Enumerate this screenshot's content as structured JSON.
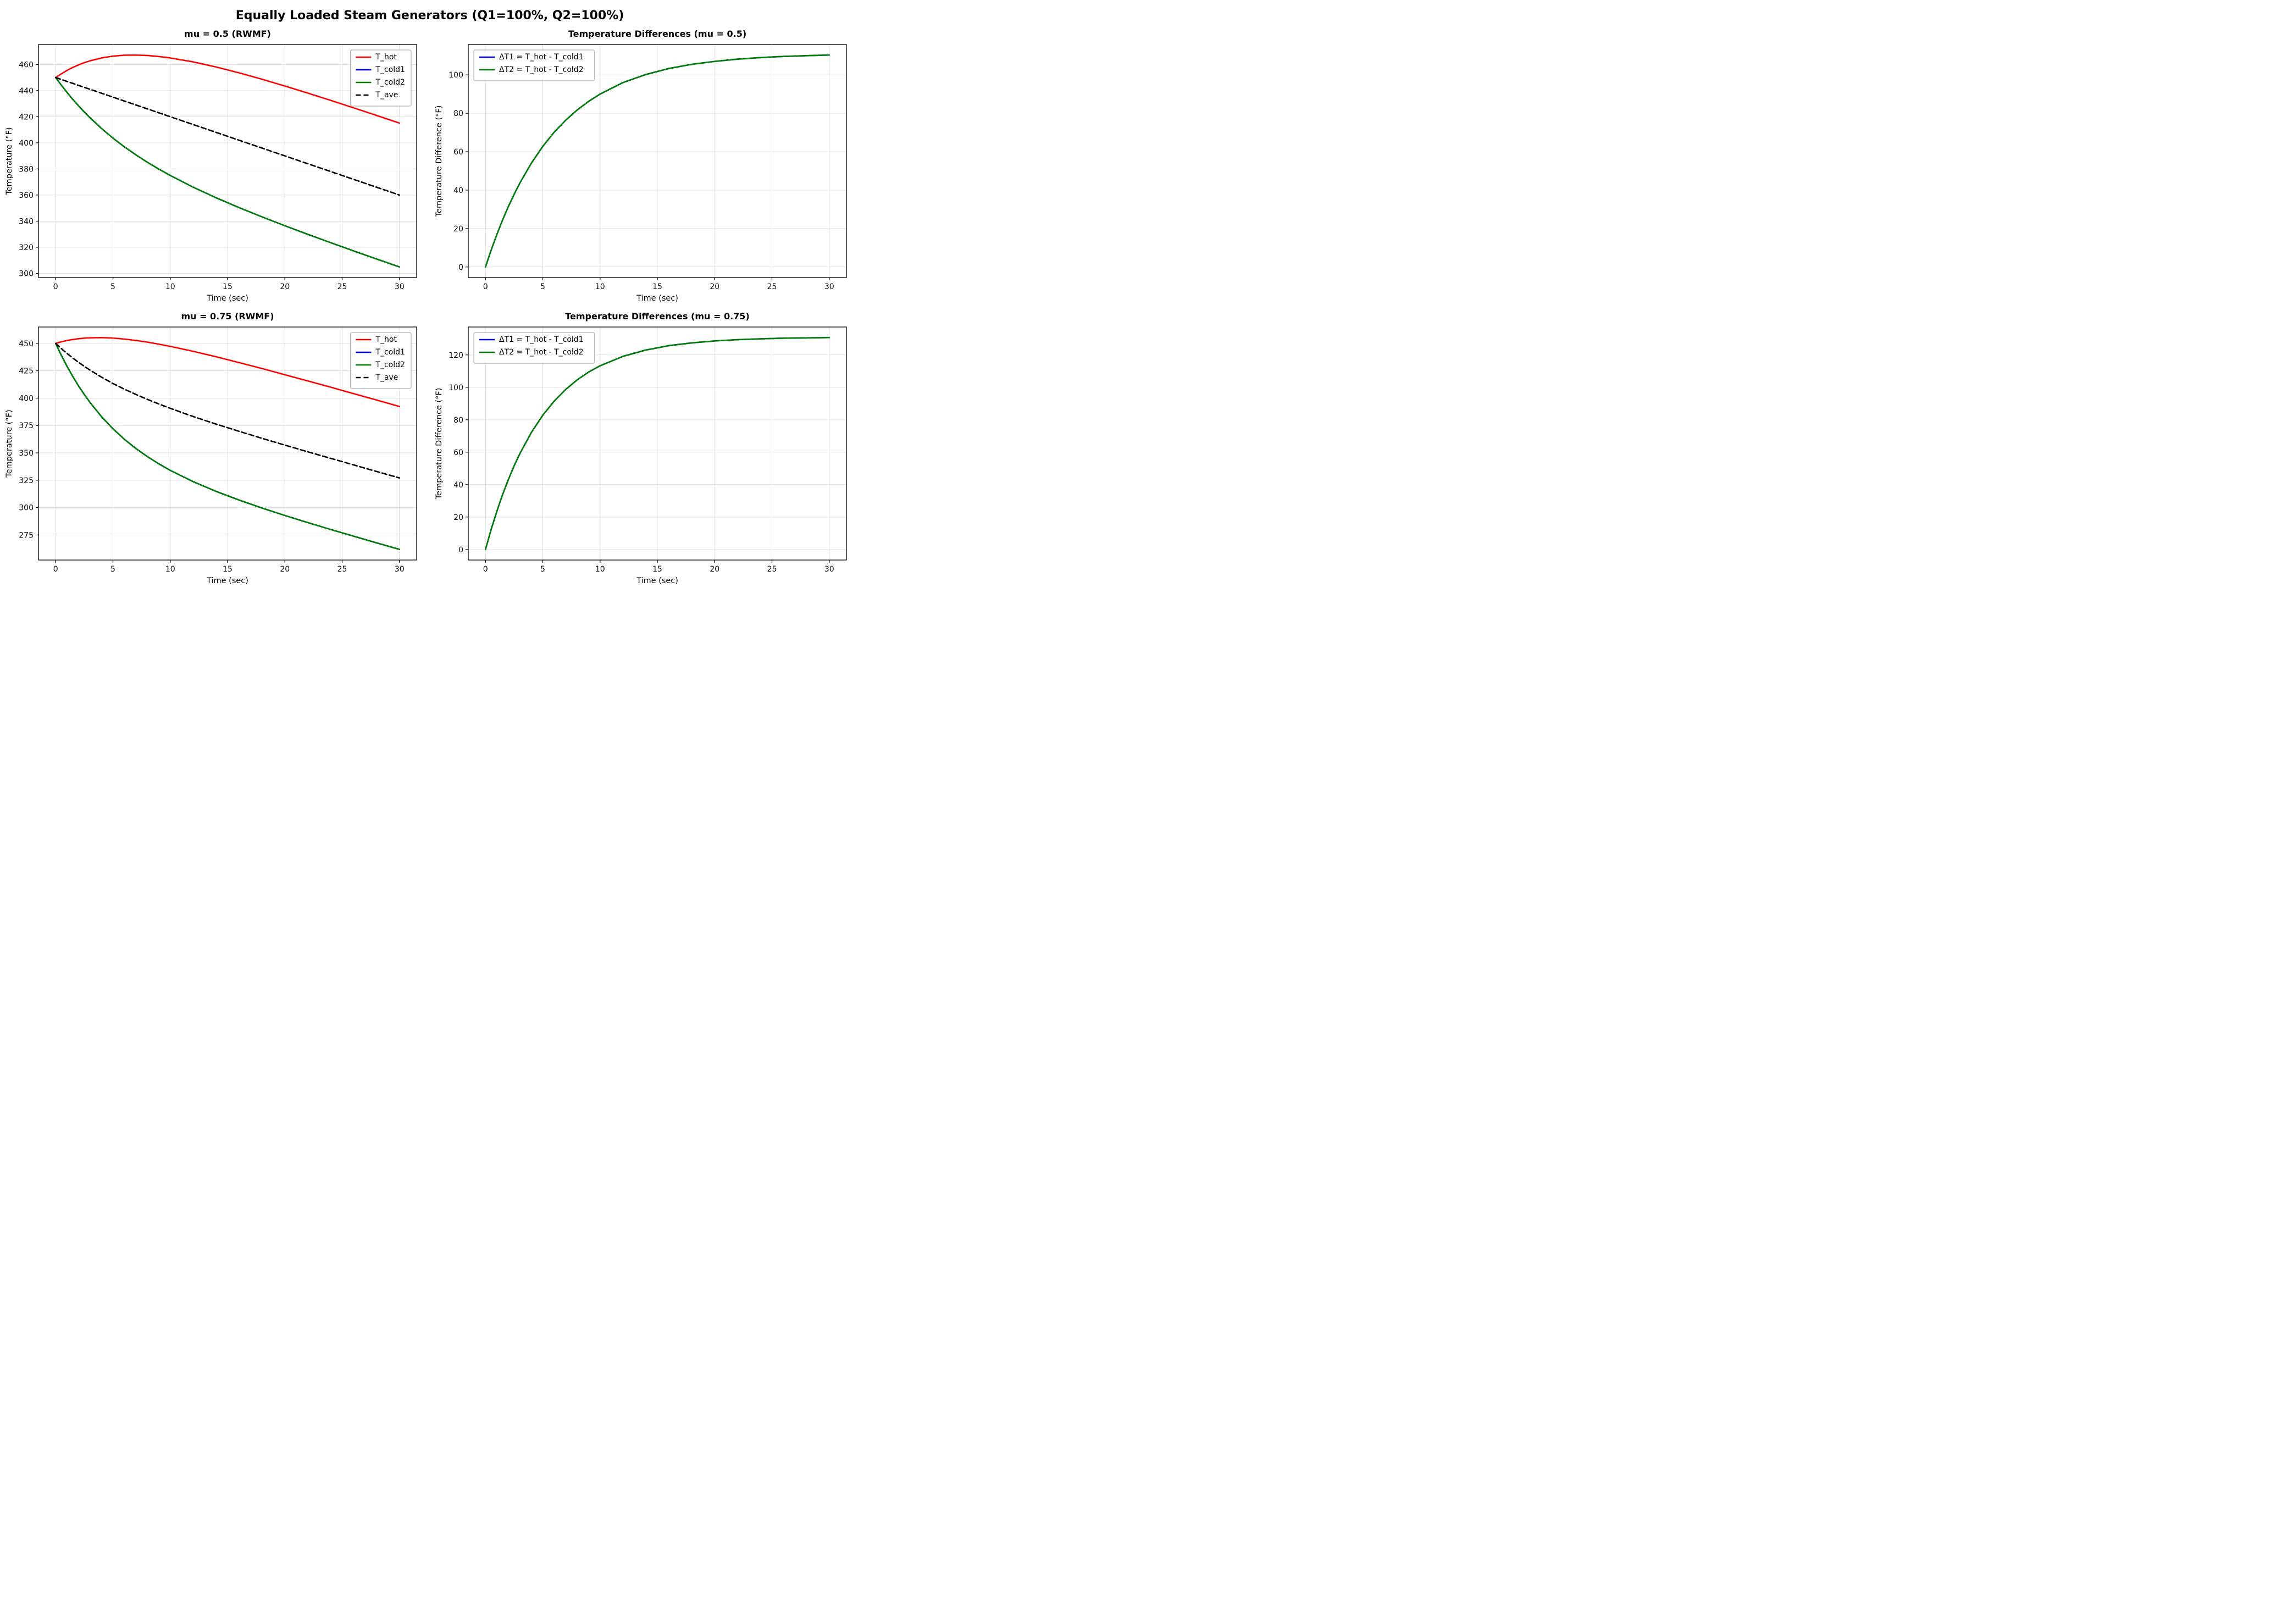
{
  "figure": {
    "suptitle": "Equally Loaded Steam Generators (Q1=100%, Q2=100%)",
    "background": "#ffffff",
    "grid_color": "#cccccc",
    "spine_color": "#000000"
  },
  "chart_data": [
    {
      "type": "line",
      "title": "mu = 0.5 (RWMF)",
      "xlabel": "Time (sec)",
      "ylabel": "Temperature (°F)",
      "xlim": [
        -1.5,
        31.5
      ],
      "ylim": [
        296.8,
        475.3
      ],
      "xticks": [
        0,
        5,
        10,
        15,
        20,
        25,
        30
      ],
      "yticks": [
        300,
        320,
        340,
        360,
        380,
        400,
        420,
        440,
        460
      ],
      "grid": true,
      "legend": "upper-right",
      "x": [
        0,
        0.5,
        1,
        1.5,
        2,
        2.5,
        3,
        4,
        5,
        6,
        7,
        8,
        9,
        10,
        12,
        14,
        16,
        18,
        20,
        22,
        24,
        26,
        28,
        30
      ],
      "series": [
        {
          "name": "T_hot",
          "color": "#ff0000",
          "dash": null,
          "values": [
            450.0,
            452.9,
            455.5,
            457.8,
            459.7,
            461.4,
            462.8,
            465.0,
            466.4,
            467.1,
            467.2,
            466.9,
            466.1,
            465.0,
            462.0,
            458.1,
            453.6,
            448.7,
            443.5,
            438.1,
            432.5,
            426.8,
            421.0,
            415.1
          ]
        },
        {
          "name": "T_cold1",
          "color": "#0000ff",
          "dash": null,
          "values": [
            450.0,
            444.1,
            438.5,
            433.2,
            428.3,
            423.6,
            419.2,
            411.0,
            403.6,
            396.9,
            390.8,
            385.1,
            379.9,
            375.0,
            366.0,
            357.9,
            350.4,
            343.3,
            336.5,
            329.9,
            323.5,
            317.2,
            311.0,
            304.9
          ]
        },
        {
          "name": "T_cold2",
          "color": "#008000",
          "dash": null,
          "values": [
            450.0,
            444.1,
            438.5,
            433.2,
            428.3,
            423.6,
            419.2,
            411.0,
            403.6,
            396.9,
            390.8,
            385.1,
            379.9,
            375.0,
            366.0,
            357.9,
            350.4,
            343.3,
            336.5,
            329.9,
            323.5,
            317.2,
            311.0,
            304.9
          ]
        },
        {
          "name": "T_ave",
          "color": "#000000",
          "dash": "9 5",
          "values": [
            450.0,
            448.5,
            447.0,
            445.5,
            444.0,
            442.5,
            441.0,
            438.0,
            435.0,
            432.0,
            429.0,
            426.0,
            423.0,
            420.0,
            414.0,
            408.0,
            402.0,
            396.0,
            390.0,
            384.0,
            378.0,
            372.0,
            366.0,
            360.0
          ]
        }
      ]
    },
    {
      "type": "line",
      "title": "Temperature Differences (mu = 0.5)",
      "xlabel": "Time (sec)",
      "ylabel": "Temperature Difference (°F)",
      "xlim": [
        -1.5,
        31.5
      ],
      "ylim": [
        -5.5,
        115.8
      ],
      "xticks": [
        0,
        5,
        10,
        15,
        20,
        25,
        30
      ],
      "yticks": [
        0,
        20,
        40,
        60,
        80,
        100
      ],
      "grid": true,
      "legend": "upper-left",
      "x": [
        0,
        0.5,
        1,
        1.5,
        2,
        2.5,
        3,
        4,
        5,
        6,
        7,
        8,
        9,
        10,
        12,
        14,
        16,
        18,
        20,
        22,
        24,
        26,
        28,
        30
      ],
      "series": [
        {
          "name": "ΔT1 = T_hot - T_cold1",
          "color": "#0000ff",
          "dash": null,
          "values": [
            0.0,
            8.9,
            17.0,
            24.6,
            31.5,
            37.8,
            43.7,
            54.0,
            62.8,
            70.2,
            76.4,
            81.7,
            86.2,
            90.0,
            96.0,
            100.2,
            103.3,
            105.5,
            107.0,
            108.2,
            109.0,
            109.6,
            110.0,
            110.3
          ]
        },
        {
          "name": "ΔT2 = T_hot - T_cold2",
          "color": "#008000",
          "dash": null,
          "values": [
            0.0,
            8.9,
            17.0,
            24.6,
            31.5,
            37.8,
            43.7,
            54.0,
            62.8,
            70.2,
            76.4,
            81.7,
            86.2,
            90.0,
            96.0,
            100.2,
            103.3,
            105.5,
            107.0,
            108.2,
            109.0,
            109.6,
            110.0,
            110.3
          ]
        }
      ]
    },
    {
      "type": "line",
      "title": "mu = 0.75 (RWMF)",
      "xlabel": "Time (sec)",
      "ylabel": "Temperature (°F)",
      "xlim": [
        -1.5,
        31.5
      ],
      "ylim": [
        252.1,
        465.0
      ],
      "xticks": [
        0,
        5,
        10,
        15,
        20,
        25,
        30
      ],
      "yticks": [
        275,
        300,
        325,
        350,
        375,
        400,
        425,
        450
      ],
      "grid": true,
      "legend": "upper-right",
      "x": [
        0,
        0.5,
        1,
        1.5,
        2,
        2.5,
        3,
        4,
        5,
        6,
        7,
        8,
        9,
        10,
        12,
        14,
        16,
        18,
        20,
        22,
        24,
        26,
        28,
        30
      ],
      "series": [
        {
          "name": "T_hot",
          "color": "#ff0000",
          "dash": null,
          "values": [
            450.0,
            451.5,
            452.7,
            453.6,
            454.3,
            454.8,
            455.1,
            455.3,
            454.9,
            454.0,
            452.7,
            451.2,
            449.3,
            447.3,
            442.8,
            437.8,
            432.5,
            427.1,
            421.4,
            415.7,
            410.0,
            404.1,
            398.3,
            392.4
          ]
        },
        {
          "name": "T_cold1",
          "color": "#0000ff",
          "dash": null,
          "values": [
            450.0,
            439.0,
            428.9,
            419.7,
            411.1,
            403.3,
            396.0,
            383.1,
            372.0,
            362.4,
            354.0,
            346.6,
            340.0,
            334.0,
            323.7,
            314.8,
            306.9,
            299.6,
            292.8,
            286.3,
            280.0,
            273.9,
            267.8,
            261.8
          ]
        },
        {
          "name": "T_cold2",
          "color": "#008000",
          "dash": null,
          "values": [
            450.0,
            439.0,
            428.9,
            419.7,
            411.1,
            403.3,
            396.0,
            383.1,
            372.0,
            362.4,
            354.0,
            346.6,
            340.0,
            334.0,
            323.7,
            314.8,
            306.9,
            299.6,
            292.8,
            286.3,
            280.0,
            273.9,
            267.8,
            261.8
          ]
        },
        {
          "name": "T_ave",
          "color": "#000000",
          "dash": "9 5",
          "values": [
            450.0,
            445.2,
            440.8,
            436.6,
            432.7,
            429.1,
            425.6,
            419.2,
            413.4,
            408.2,
            403.4,
            398.9,
            394.7,
            390.7,
            383.2,
            376.3,
            369.7,
            363.3,
            357.1,
            351.0,
            345.0,
            339.0,
            333.0,
            327.1
          ]
        }
      ]
    },
    {
      "type": "line",
      "title": "Temperature Differences (mu = 0.75)",
      "xlabel": "Time (sec)",
      "ylabel": "Temperature Difference (°F)",
      "xlim": [
        -1.5,
        31.5
      ],
      "ylim": [
        -6.5,
        137.2
      ],
      "xticks": [
        0,
        5,
        10,
        15,
        20,
        25,
        30
      ],
      "yticks": [
        0,
        20,
        40,
        60,
        80,
        100,
        120
      ],
      "grid": true,
      "legend": "upper-left",
      "x": [
        0,
        0.5,
        1,
        1.5,
        2,
        2.5,
        3,
        4,
        5,
        6,
        7,
        8,
        9,
        10,
        12,
        14,
        16,
        18,
        20,
        22,
        24,
        26,
        28,
        30
      ],
      "series": [
        {
          "name": "ΔT1 = T_hot - T_cold1",
          "color": "#0000ff",
          "dash": null,
          "values": [
            0.0,
            12.5,
            23.7,
            34.0,
            43.2,
            51.6,
            59.1,
            72.1,
            82.8,
            91.5,
            98.7,
            104.6,
            109.4,
            113.3,
            119.1,
            123.0,
            125.7,
            127.4,
            128.6,
            129.4,
            129.9,
            130.3,
            130.5,
            130.7
          ]
        },
        {
          "name": "ΔT2 = T_hot - T_cold2",
          "color": "#008000",
          "dash": null,
          "values": [
            0.0,
            12.5,
            23.7,
            34.0,
            43.2,
            51.6,
            59.1,
            72.1,
            82.8,
            91.5,
            98.7,
            104.6,
            109.4,
            113.3,
            119.1,
            123.0,
            125.7,
            127.4,
            128.6,
            129.4,
            129.9,
            130.3,
            130.5,
            130.7
          ]
        }
      ]
    }
  ]
}
